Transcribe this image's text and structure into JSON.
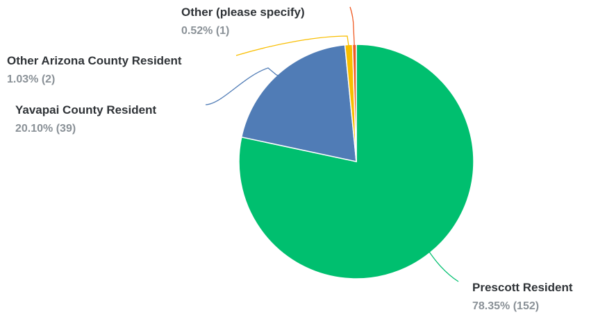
{
  "chart_data": {
    "type": "pie",
    "title": "",
    "slices": [
      {
        "label": "Prescott Resident",
        "percent": 78.35,
        "count": 152,
        "value_text": "78.35% (152)",
        "color": "#00bf6f"
      },
      {
        "label": "Yavapai County Resident",
        "percent": 20.1,
        "count": 39,
        "value_text": "20.10% (39)",
        "color": "#507cb6"
      },
      {
        "label": "Other Arizona County Resident",
        "percent": 1.03,
        "count": 2,
        "value_text": "1.03% (2)",
        "color": "#f9be00"
      },
      {
        "label": "Other (please specify)",
        "percent": 0.52,
        "count": 1,
        "value_text": "0.52% (1)",
        "color": "#f05b24"
      }
    ],
    "start_angle": "12 o'clock",
    "direction": "clockwise",
    "legend": "none"
  }
}
